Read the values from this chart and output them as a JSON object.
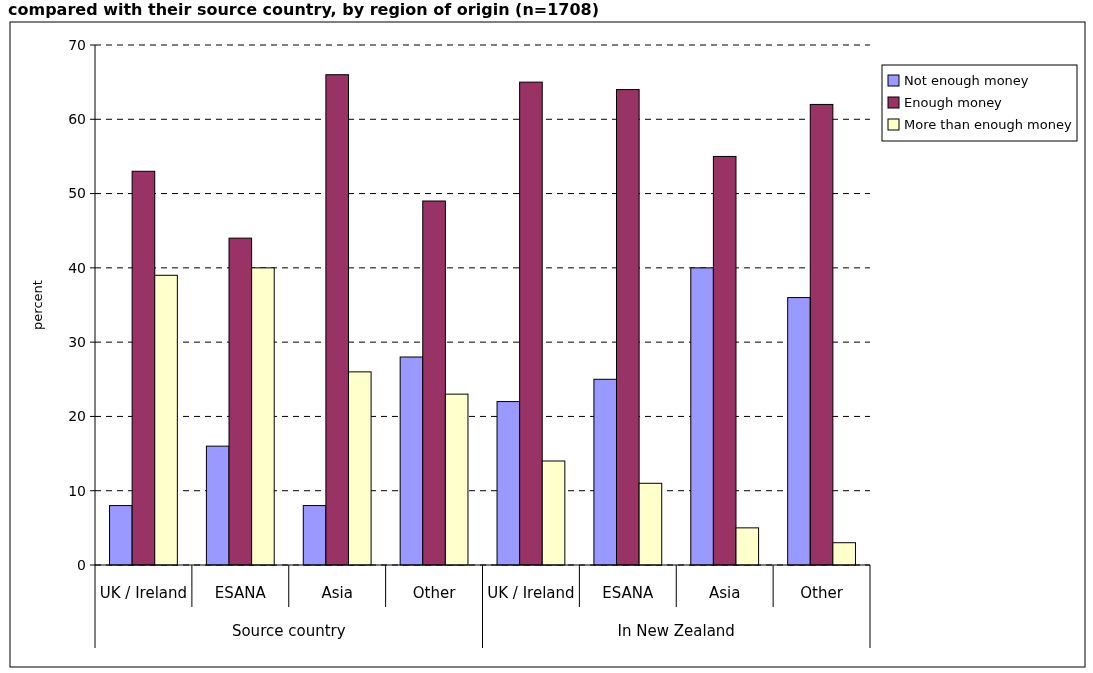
{
  "chart_data": {
    "type": "bar",
    "title": "compared with their source country, by region of origin (n=1708)",
    "ylabel": "percent",
    "categories": [
      "UK / Ireland",
      "ESANA",
      "Asia",
      "Other",
      "UK / Ireland",
      "ESANA",
      "Asia",
      "Other"
    ],
    "series": [
      {
        "name": "Not enough money",
        "color": "#9999ff",
        "values": [
          8,
          16,
          8,
          28,
          22,
          25,
          40,
          36
        ]
      },
      {
        "name": "Enough money",
        "color": "#993366",
        "values": [
          53,
          44,
          66,
          49,
          65,
          64,
          55,
          62
        ]
      },
      {
        "name": "More than enough money",
        "color": "#ffffcc",
        "values": [
          39,
          40,
          26,
          23,
          14,
          11,
          5,
          3
        ]
      }
    ],
    "annotations": [
      "Source country",
      "In New Zealand"
    ],
    "ylim": [
      0,
      70
    ],
    "yticks": [
      0,
      10,
      20,
      30,
      40,
      50,
      60,
      70
    ],
    "grid": "y",
    "legend": "right"
  }
}
